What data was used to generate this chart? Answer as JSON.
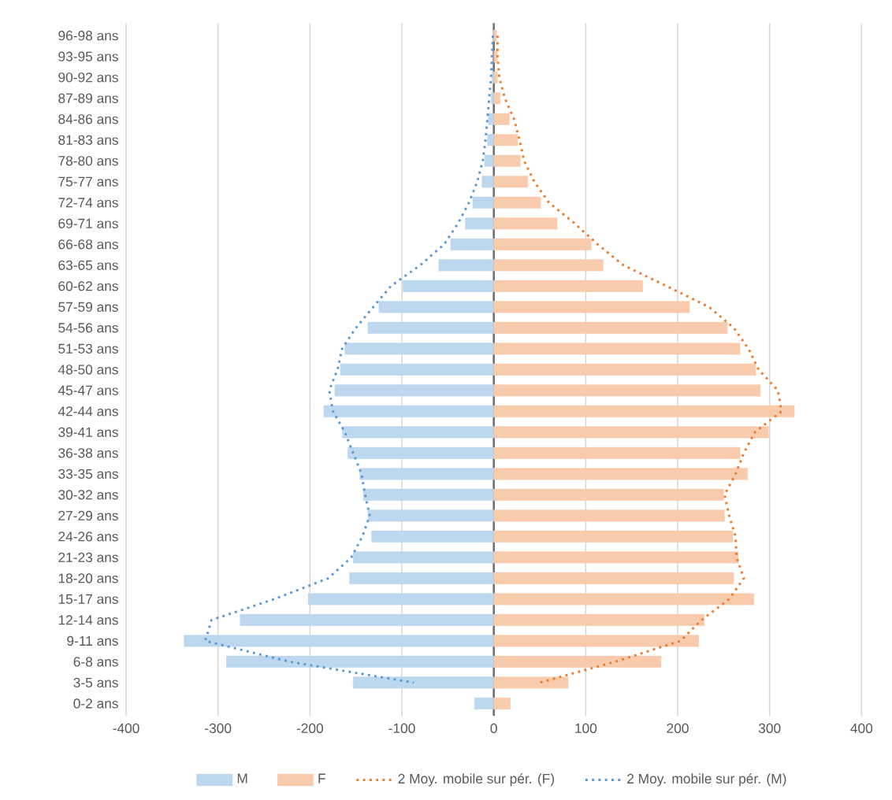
{
  "chart_data": {
    "type": "bar",
    "orientation": "horizontal",
    "categories": [
      "96-98 ans",
      "93-95 ans",
      "90-92 ans",
      "87-89 ans",
      "84-86 ans",
      "81-83 ans",
      "78-80 ans",
      "75-77 ans",
      "72-74 ans",
      "69-71 ans",
      "66-68 ans",
      "63-65 ans",
      "60-62 ans",
      "57-59 ans",
      "54-56 ans",
      "51-53 ans",
      "48-50 ans",
      "45-47 ans",
      "42-44 ans",
      "39-41 ans",
      "36-38 ans",
      "33-35 ans",
      "30-32 ans",
      "27-29 ans",
      "24-26 ans",
      "21-23 ans",
      "18-20 ans",
      "15-17 ans",
      "12-14 ans",
      "9-11 ans",
      "6-8 ans",
      "3-5 ans",
      "0-2 ans"
    ],
    "series": [
      {
        "name": "M",
        "color": "#bdd7ee",
        "values": [
          -1,
          null,
          -2,
          -3,
          -6,
          -7,
          -10,
          -13,
          -23,
          -31,
          -47,
          -60,
          -99,
          -125,
          -137,
          -162,
          -167,
          -173,
          -185,
          -165,
          -159,
          -146,
          -142,
          -137,
          -133,
          -153,
          -157,
          -202,
          -276,
          -337,
          -291,
          -153,
          -21
        ]
      },
      {
        "name": "F",
        "color": "#f8cbad",
        "values": [
          3,
          4,
          4,
          7,
          17,
          26,
          29,
          37,
          51,
          69,
          106,
          119,
          162,
          213,
          254,
          268,
          285,
          290,
          327,
          299,
          268,
          276,
          250,
          251,
          260,
          266,
          261,
          283,
          229,
          223,
          182,
          81,
          18
        ]
      },
      {
        "name": "2 Moy. mobile sur pér. (F)",
        "type": "line",
        "line_style": "dotted",
        "color": "#ed7d31",
        "values": [
          4,
          4,
          6,
          12,
          22,
          28,
          33,
          44,
          60,
          88,
          113,
          141,
          188,
          234,
          261,
          277,
          288,
          309,
          313,
          284,
          272,
          263,
          251,
          256,
          263,
          264,
          272,
          256,
          226,
          203,
          132,
          50,
          null
        ]
      },
      {
        "name": "2 Moy. mobile sur pér. (M)",
        "type": "line",
        "line_style": "dotted",
        "color": "#5b9bd5",
        "values": [
          -1,
          -2,
          -3,
          -5,
          -7,
          -9,
          -12,
          -18,
          -27,
          -39,
          -54,
          -80,
          -112,
          -131,
          -150,
          -165,
          -170,
          -179,
          -175,
          -162,
          -153,
          -144,
          -140,
          -135,
          -143,
          -155,
          -180,
          -239,
          -307,
          -314,
          -222,
          -87,
          null
        ]
      }
    ],
    "xlim": [
      -400,
      400
    ],
    "xticks": [
      -400,
      -300,
      -200,
      -100,
      0,
      100,
      200,
      300,
      400
    ],
    "stacked": true,
    "grid": "x",
    "legend": "bottom"
  }
}
